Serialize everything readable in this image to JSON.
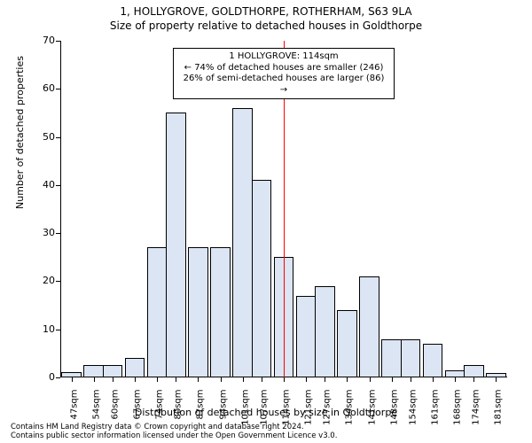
{
  "title_line1": "1, HOLLYGROVE, GOLDTHORPE, ROTHERHAM, S63 9LA",
  "title_line2": "Size of property relative to detached houses in Goldthorpe",
  "ylabel": "Number of detached properties",
  "xlabel": "Distribution of detached houses by size in Goldthorpe",
  "chart": {
    "type": "bar",
    "ylim": [
      0,
      70
    ],
    "ytick_step": 10,
    "yticks": [
      0,
      10,
      20,
      30,
      40,
      50,
      60,
      70
    ],
    "bar_fill_color": "#dbe5f4",
    "bar_edge_color": "#000000",
    "background_color": "#ffffff",
    "axis_color": "#000000",
    "reference_line_color": "#ff0000",
    "reference_line_x": 114,
    "x_range": [
      43.5,
      184.5
    ],
    "bar_half_width_sqm": 3.5,
    "categories_sqm": [
      47,
      54,
      60,
      67,
      74,
      80,
      87,
      94,
      101,
      107,
      114,
      121,
      127,
      134,
      141,
      148,
      154,
      161,
      168,
      174,
      181
    ],
    "x_labels": [
      "47sqm",
      "54sqm",
      "60sqm",
      "67sqm",
      "74sqm",
      "80sqm",
      "87sqm",
      "94sqm",
      "101sqm",
      "107sqm",
      "114sqm",
      "121sqm",
      "127sqm",
      "134sqm",
      "141sqm",
      "148sqm",
      "154sqm",
      "161sqm",
      "168sqm",
      "174sqm",
      "181sqm"
    ],
    "values": [
      1.2,
      2.5,
      2.5,
      4,
      27,
      55,
      27,
      27,
      56,
      41,
      25,
      17,
      19,
      14,
      21,
      8,
      8,
      7,
      1.5,
      2.5,
      1
    ],
    "title_fontsize": 12,
    "label_fontsize": 11,
    "tick_fontsize": 11,
    "xtick_fontsize": 10,
    "bin_visual_width_sqm": 6.4
  },
  "annotation": {
    "line1": "1 HOLLYGROVE: 114sqm",
    "line2": "← 74% of detached houses are smaller (246)",
    "line3": "26% of semi-detached houses are larger (86) →"
  },
  "attribution": {
    "line1": "Contains HM Land Registry data © Crown copyright and database right 2024.",
    "line2": "Contains public sector information licensed under the Open Government Licence v3.0."
  }
}
